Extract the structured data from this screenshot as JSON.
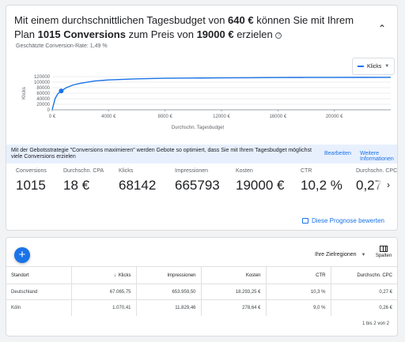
{
  "headline": {
    "pre": "Mit einem durchschnittlichen Tagesbudget von",
    "budget": "640 €",
    "mid": "können Sie mit Ihrem Plan",
    "conversions": "1015 Conversions",
    "pre_cost": "zum Preis von",
    "cost": "19000 €",
    "post": "erzielen"
  },
  "conversion_rate_label": "Geschätzte Conversion-Rate: 1,49 %",
  "metric_dropdown": {
    "label": "Klicks",
    "color": "#1a73e8"
  },
  "chart_data": {
    "type": "line",
    "xlabel": "Durchschn. Tagesbudget",
    "ylabel": "Klicks",
    "x_ticks": [
      "0 €",
      "4000 €",
      "8000 €",
      "12000 €",
      "16000 €",
      "20000 €"
    ],
    "y_ticks": [
      "0",
      "20000",
      "40000",
      "60000",
      "80000",
      "100000",
      "120000"
    ],
    "xlim": [
      0,
      24000
    ],
    "ylim": [
      0,
      120000
    ],
    "series": [
      {
        "x": [
          0,
          200,
          400,
          640,
          1000,
          1500,
          2000,
          3000,
          4000,
          6000,
          8000,
          10000,
          12000,
          14000,
          16000,
          18000,
          20000,
          22000,
          24000
        ],
        "y": [
          0,
          40000,
          58000,
          68142,
          80000,
          90000,
          96000,
          104000,
          108000,
          112000,
          114000,
          115000,
          115500,
          116000,
          116500,
          116800,
          117000,
          117200,
          117300
        ],
        "color": "#1a73e8"
      }
    ],
    "marker": {
      "x": 640,
      "y": 68142
    }
  },
  "info_bar": {
    "text": "Mit der Gebotsstrategie \"Conversions maximieren\" werden Gebote so optimiert, dass Sie mit Ihrem Tagesbudget möglichst viele Conversions erzielen",
    "edit_link": "Bearbeiten",
    "more_link": "Weitere Informationen"
  },
  "stats": [
    {
      "label": "Conversions",
      "value": "1015"
    },
    {
      "label": "Durchschn. CPA",
      "value": "18 €"
    },
    {
      "label": "Klicks",
      "value": "68142"
    },
    {
      "label": "Impressionen",
      "value": "665793"
    },
    {
      "label": "Kosten",
      "value": "19000 €"
    },
    {
      "label": "CTR",
      "value": "10,2 %"
    },
    {
      "label": "Durchschn. CPC",
      "value": "0,27"
    }
  ],
  "rate_link": "Diese Prognose bewerten",
  "table": {
    "region_dropdown": "Ihre Zielregionen",
    "columns_button": "Spalten",
    "headers": [
      "Standort",
      "Klicks",
      "Impressionen",
      "Kosten",
      "CTR",
      "Durchschn. CPC"
    ],
    "rows": [
      [
        "Deutschland",
        "67.065,75",
        "653.959,50",
        "18.293,25 €",
        "10,3 %",
        "0,27 €"
      ],
      [
        "Köln",
        "1.070,41",
        "11.829,46",
        "278,64 €",
        "9,0 %",
        "0,26 €"
      ]
    ],
    "pagination": "1 bis 2 von 2"
  }
}
